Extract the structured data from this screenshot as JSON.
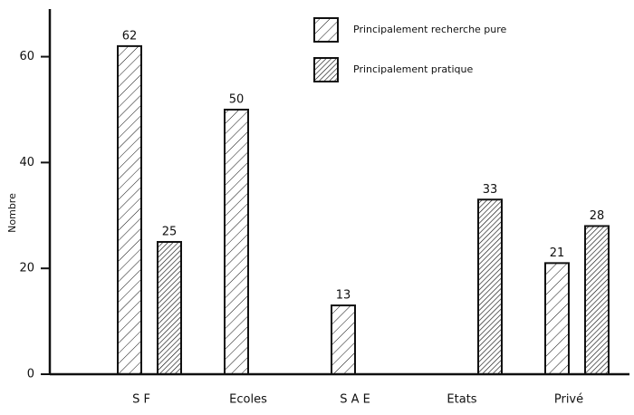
{
  "chart_data": {
    "type": "bar",
    "y_label": "Nombre",
    "categories": [
      "S F",
      "Ecoles",
      "S A E",
      "Etats",
      "Privé"
    ],
    "series": [
      {
        "name": "Principalement recherche pure",
        "color": "#111111",
        "values": [
          62,
          50,
          13,
          null,
          21
        ]
      },
      {
        "name": "Principalement pratique",
        "color": "#111111",
        "values": [
          25,
          null,
          null,
          33,
          28
        ]
      }
    ],
    "ylim": [
      0,
      69
    ],
    "yticks": [
      0,
      20,
      40,
      60
    ]
  }
}
